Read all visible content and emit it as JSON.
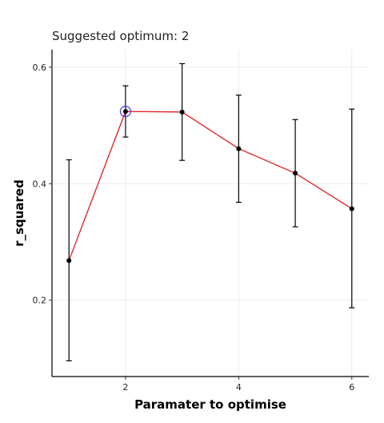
{
  "chart_data": {
    "type": "line",
    "title": "Suggested optimum: 2",
    "xlabel": "Paramater to optimise",
    "ylabel": "r_squared",
    "x": [
      1,
      2,
      3,
      4,
      5,
      6
    ],
    "series": [
      {
        "values": [
          0.268,
          0.524,
          0.523,
          0.46,
          0.418,
          0.357
        ],
        "lower": [
          0.096,
          0.48,
          0.44,
          0.368,
          0.326,
          0.187
        ],
        "upper": [
          0.441,
          0.568,
          0.606,
          0.552,
          0.51,
          0.528
        ],
        "color": "#e41a1c"
      }
    ],
    "highlight": {
      "x": 2,
      "y": 0.524,
      "color": "#3b3bdb"
    },
    "xticks": [
      2,
      4,
      6
    ],
    "xtick_labels": [
      "2",
      "4",
      "6"
    ],
    "yticks": [
      0.2,
      0.4,
      0.6
    ],
    "ytick_labels": [
      "0.2",
      "0.4",
      "0.6"
    ],
    "xlim": [
      0.7,
      6.3
    ],
    "ylim": [
      0.069,
      0.63
    ],
    "grid": true,
    "legend": "none"
  }
}
